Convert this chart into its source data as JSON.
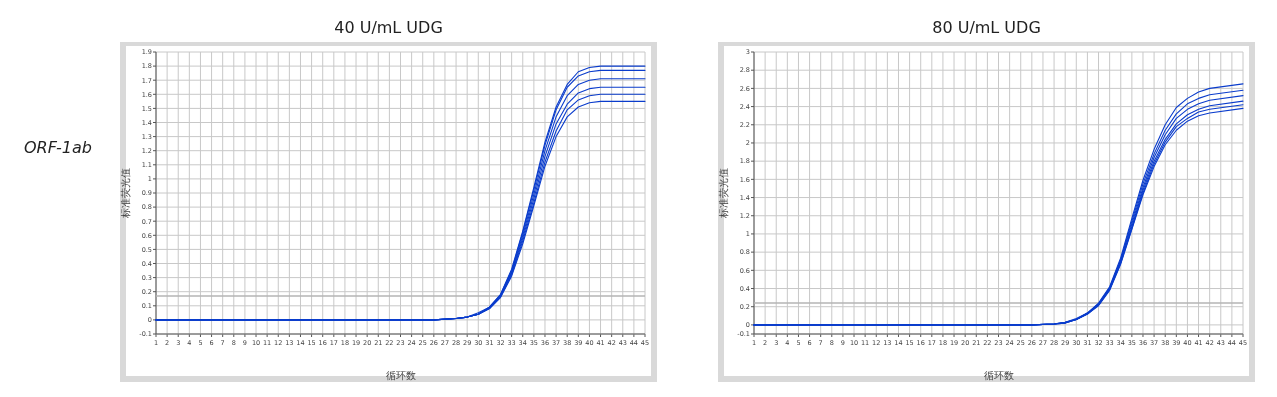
{
  "chart_data": [
    {
      "type": "line",
      "title": "40 U/mL UDG",
      "xlabel": "循环数",
      "ylabel": "标准荧光值",
      "annotations": [
        "ORF-1ab"
      ],
      "x": [
        1,
        10,
        20,
        26,
        28,
        29,
        30,
        31,
        32,
        33,
        34,
        35,
        36,
        37,
        38,
        39,
        40,
        41,
        42,
        45
      ],
      "xlim": [
        1,
        45
      ],
      "xticks": [
        1,
        2,
        3,
        4,
        5,
        6,
        7,
        8,
        9,
        10,
        11,
        12,
        13,
        14,
        15,
        16,
        17,
        18,
        19,
        20,
        21,
        22,
        23,
        24,
        25,
        26,
        27,
        28,
        29,
        30,
        31,
        32,
        33,
        34,
        35,
        36,
        37,
        38,
        39,
        40,
        41,
        42,
        43,
        44,
        45
      ],
      "ylim": [
        -0.1,
        1.9
      ],
      "yticks": [
        -0.1,
        0,
        0.1,
        0.2,
        0.3,
        0.4,
        0.5,
        0.6,
        0.7,
        0.8,
        0.9,
        1,
        1.1,
        1.2,
        1.3,
        1.4,
        1.5,
        1.6,
        1.7,
        1.8,
        1.9
      ],
      "grid": true,
      "marker": "none",
      "line_style": "solid",
      "ref_lines": [
        {
          "axis": "y",
          "value": 0.17,
          "color": "#b4b4b4"
        }
      ],
      "series": [
        {
          "color": "#0a3ccc",
          "values": [
            0,
            0,
            0,
            0,
            0.01,
            0.02,
            0.05,
            0.09,
            0.18,
            0.36,
            0.63,
            0.94,
            1.26,
            1.51,
            1.67,
            1.76,
            1.79,
            1.8,
            1.8,
            1.8
          ]
        },
        {
          "color": "#0a3ccc",
          "values": [
            0,
            0,
            0,
            0,
            0.01,
            0.02,
            0.04,
            0.09,
            0.18,
            0.35,
            0.62,
            0.92,
            1.24,
            1.49,
            1.65,
            1.73,
            1.76,
            1.77,
            1.77,
            1.77
          ]
        },
        {
          "color": "#0a3ccc",
          "values": [
            0,
            0,
            0,
            0,
            0.01,
            0.02,
            0.04,
            0.09,
            0.17,
            0.34,
            0.6,
            0.89,
            1.2,
            1.44,
            1.59,
            1.67,
            1.7,
            1.71,
            1.71,
            1.71
          ]
        },
        {
          "color": "#0a3ccc",
          "values": [
            0,
            0,
            0,
            0,
            0.01,
            0.02,
            0.04,
            0.08,
            0.17,
            0.33,
            0.58,
            0.86,
            1.16,
            1.39,
            1.53,
            1.61,
            1.64,
            1.65,
            1.65,
            1.65
          ]
        },
        {
          "color": "#0a3ccc",
          "values": [
            0,
            0,
            0,
            0,
            0.01,
            0.02,
            0.04,
            0.08,
            0.16,
            0.32,
            0.56,
            0.83,
            1.12,
            1.34,
            1.49,
            1.56,
            1.59,
            1.6,
            1.6,
            1.6
          ]
        },
        {
          "color": "#0a3ccc",
          "values": [
            0,
            0,
            0,
            0,
            0.01,
            0.02,
            0.04,
            0.08,
            0.16,
            0.31,
            0.54,
            0.81,
            1.09,
            1.3,
            1.44,
            1.51,
            1.54,
            1.55,
            1.55,
            1.55
          ]
        }
      ]
    },
    {
      "type": "line",
      "title": "80 U/mL UDG",
      "xlabel": "循环数",
      "ylabel": "标准荧光值",
      "x": [
        1,
        10,
        20,
        26,
        28,
        29,
        30,
        31,
        32,
        33,
        34,
        35,
        36,
        37,
        38,
        39,
        40,
        41,
        42,
        45
      ],
      "xlim": [
        1,
        45
      ],
      "xticks": [
        1,
        2,
        3,
        4,
        5,
        6,
        7,
        8,
        9,
        10,
        11,
        12,
        13,
        14,
        15,
        16,
        17,
        18,
        19,
        20,
        21,
        22,
        23,
        24,
        25,
        26,
        27,
        28,
        29,
        30,
        31,
        32,
        33,
        34,
        35,
        36,
        37,
        38,
        39,
        40,
        41,
        42,
        43,
        44,
        45
      ],
      "ylim": [
        -0.1,
        3
      ],
      "yticks": [
        -0.1,
        0,
        0.2,
        0.4,
        0.6,
        0.8,
        1,
        1.2,
        1.4,
        1.6,
        1.8,
        2,
        2.2,
        2.4,
        2.6,
        2.8,
        3
      ],
      "grid": true,
      "marker": "none",
      "line_style": "solid",
      "ref_lines": [
        {
          "axis": "y",
          "value": 0.24,
          "color": "#b4b4b4"
        }
      ],
      "series": [
        {
          "color": "#0a3ccc",
          "values": [
            0,
            0,
            0,
            0,
            0.01,
            0.03,
            0.07,
            0.13,
            0.24,
            0.42,
            0.74,
            1.17,
            1.59,
            1.93,
            2.2,
            2.39,
            2.49,
            2.56,
            2.6,
            2.65
          ]
        },
        {
          "color": "#0a3ccc",
          "values": [
            0,
            0,
            0,
            0,
            0.01,
            0.03,
            0.06,
            0.13,
            0.23,
            0.41,
            0.72,
            1.14,
            1.55,
            1.88,
            2.14,
            2.32,
            2.43,
            2.49,
            2.53,
            2.58
          ]
        },
        {
          "color": "#0a3ccc",
          "values": [
            0,
            0,
            0,
            0,
            0.01,
            0.03,
            0.06,
            0.13,
            0.23,
            0.4,
            0.71,
            1.11,
            1.51,
            1.84,
            2.09,
            2.27,
            2.37,
            2.43,
            2.47,
            2.52
          ]
        },
        {
          "color": "#0a3ccc",
          "values": [
            0,
            0,
            0,
            0,
            0.01,
            0.02,
            0.06,
            0.12,
            0.22,
            0.39,
            0.69,
            1.08,
            1.48,
            1.8,
            2.04,
            2.21,
            2.31,
            2.37,
            2.41,
            2.46
          ]
        },
        {
          "color": "#0a3ccc",
          "values": [
            0,
            0,
            0,
            0,
            0.01,
            0.02,
            0.06,
            0.12,
            0.22,
            0.39,
            0.68,
            1.06,
            1.45,
            1.77,
            2.01,
            2.18,
            2.27,
            2.34,
            2.37,
            2.42
          ]
        },
        {
          "color": "#0a3ccc",
          "values": [
            0,
            0,
            0,
            0,
            0.01,
            0.02,
            0.06,
            0.12,
            0.21,
            0.38,
            0.67,
            1.05,
            1.43,
            1.74,
            1.98,
            2.14,
            2.24,
            2.3,
            2.33,
            2.38
          ]
        }
      ]
    }
  ]
}
